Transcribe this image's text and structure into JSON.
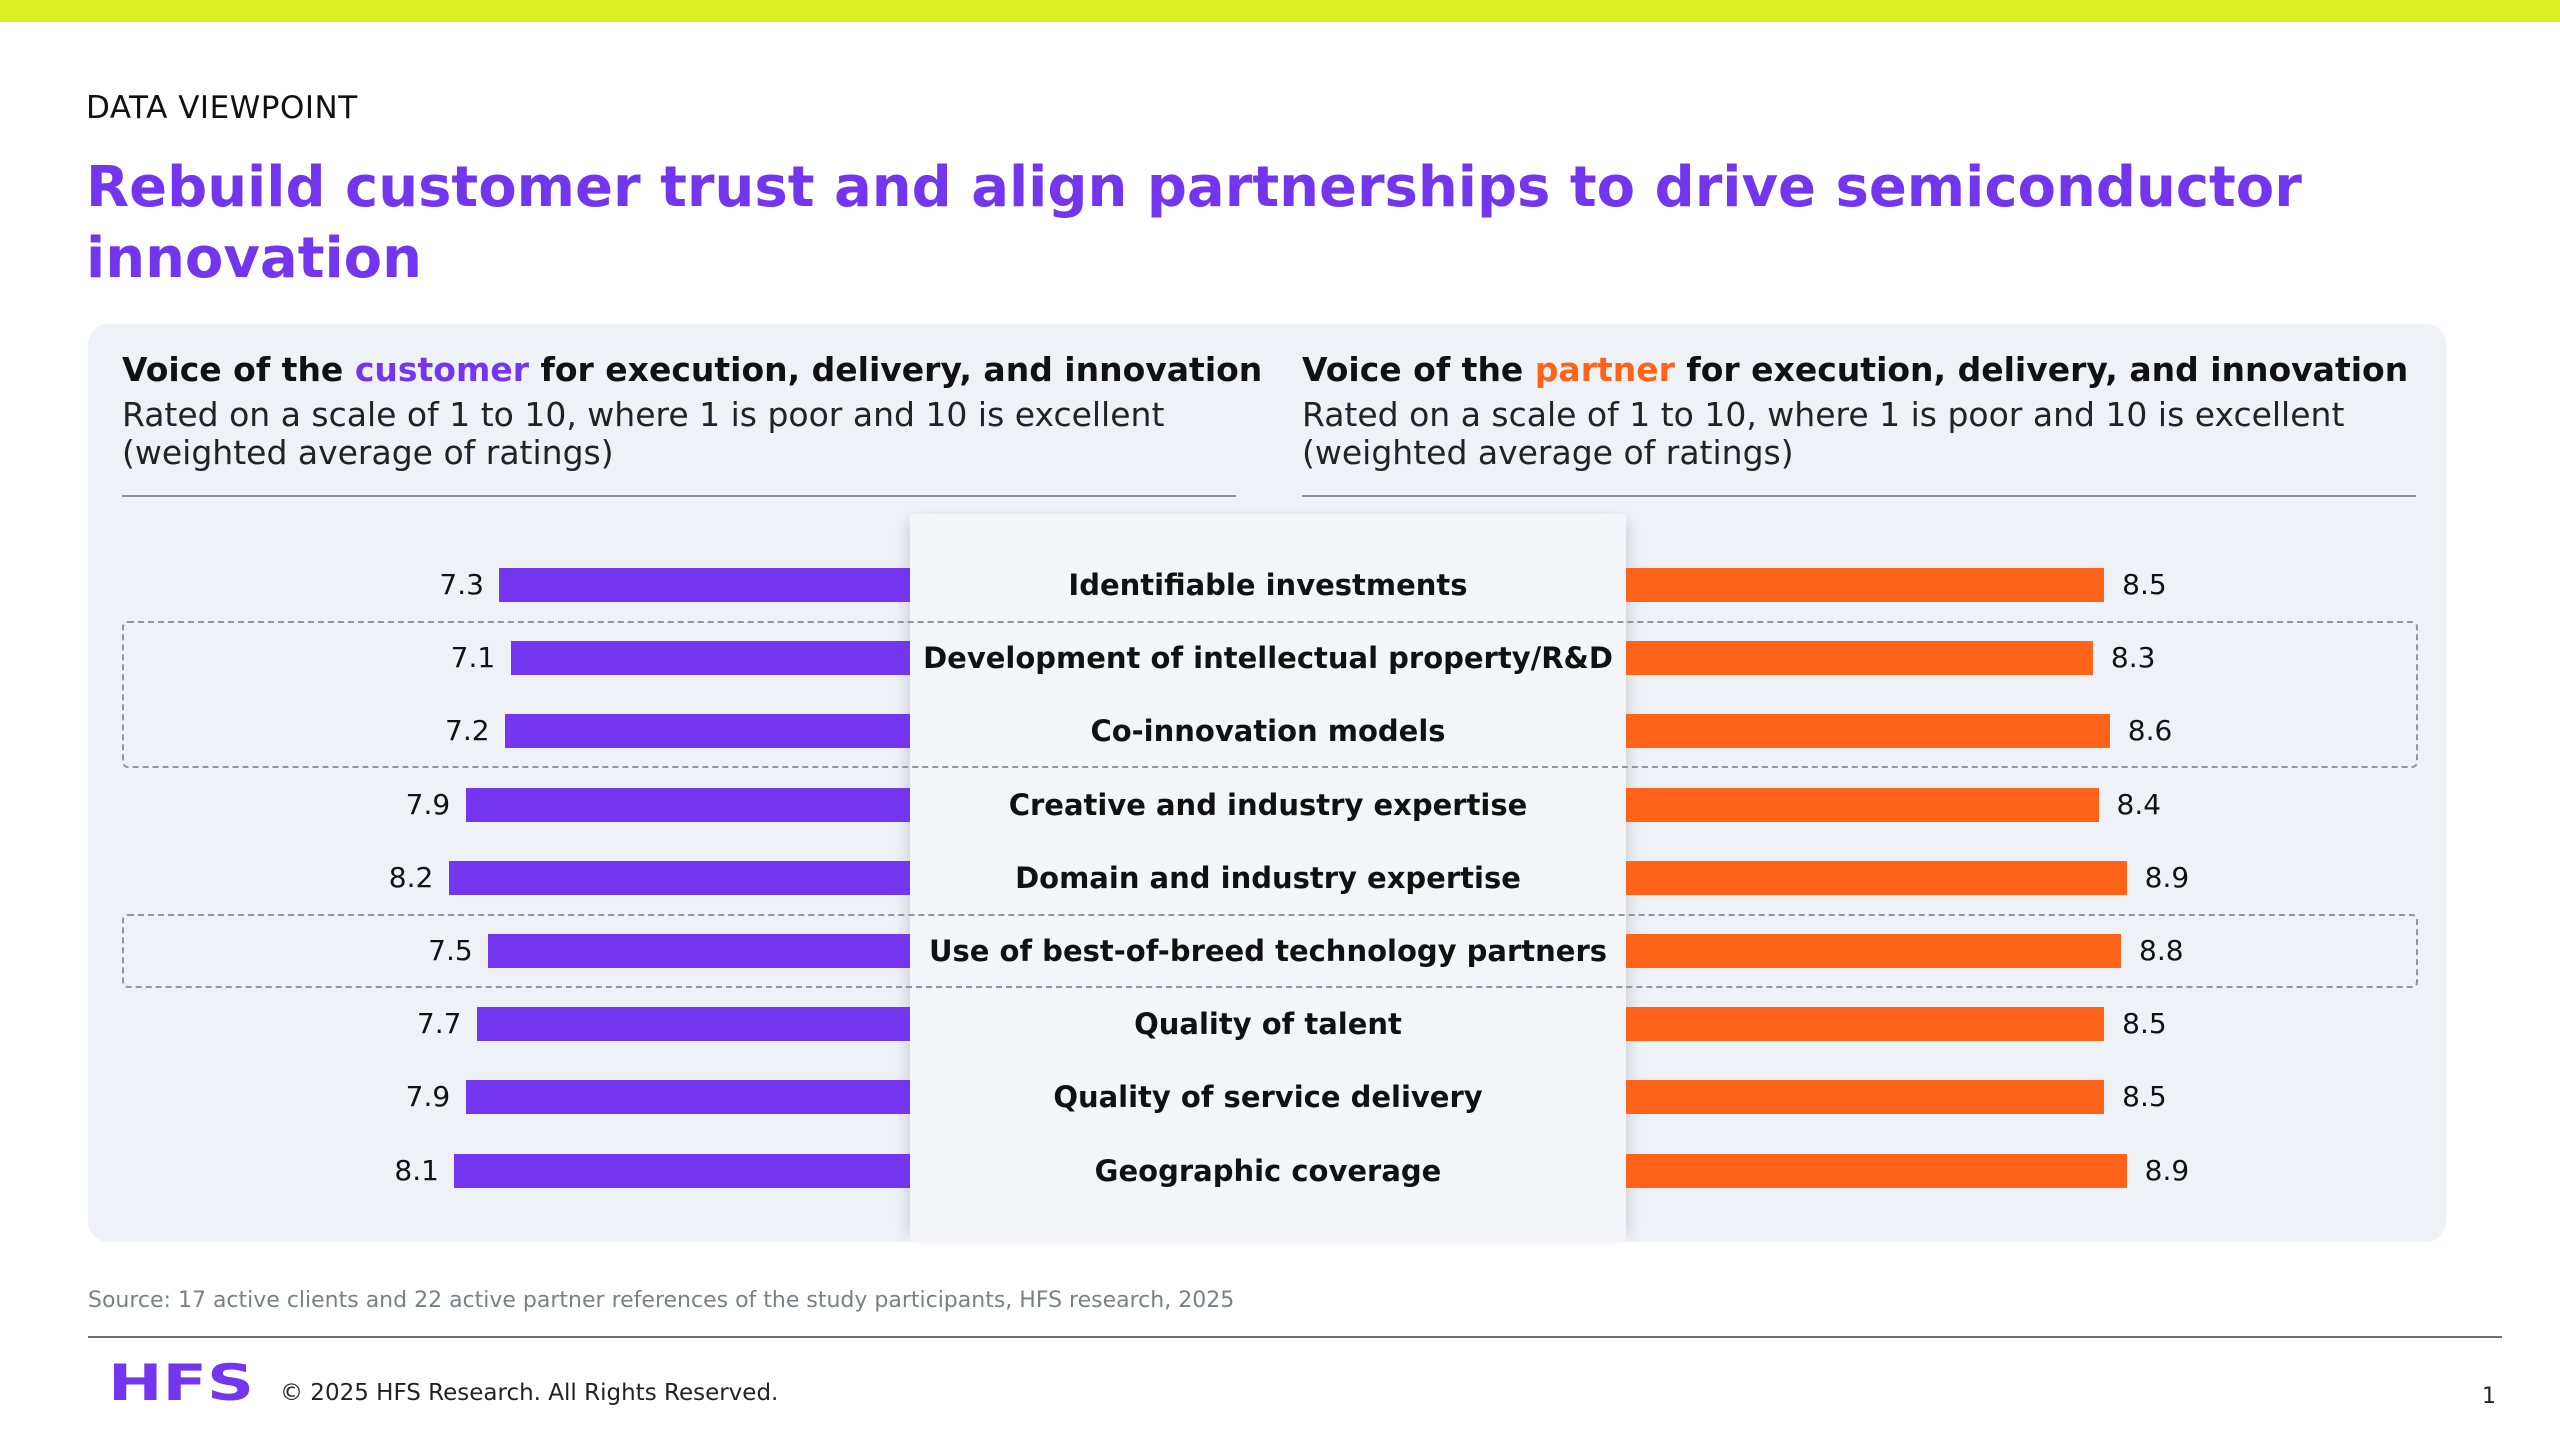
{
  "kicker": "DATA VIEWPOINT",
  "title": "Rebuild customer trust and align partnerships to drive semiconductor innovation",
  "left_panel": {
    "title_prefix": "Voice of the ",
    "title_highlight": "customer",
    "title_suffix": " for execution, delivery, and innovation",
    "subtitle": "Rated on a scale of 1 to 10, where 1 is poor and 10 is excellent (weighted average of ratings)"
  },
  "right_panel": {
    "title_prefix": "Voice of the ",
    "title_highlight": "partner",
    "title_suffix": " for execution, delivery, and innovation",
    "subtitle": "Rated on a scale of 1 to 10, where 1 is poor and 10 is excellent (weighted average of ratings)"
  },
  "chart_data": {
    "type": "bar",
    "orientation": "horizontal-diverging",
    "categories": [
      "Identifiable investments",
      "Development of intellectual property/R&D",
      "Co-innovation models",
      "Creative and industry expertise",
      "Domain and industry expertise",
      "Use of best-of-breed technology partners",
      "Quality of talent",
      "Quality of service delivery",
      "Geographic coverage"
    ],
    "series": [
      {
        "values": [
          7.3,
          7.1,
          7.2,
          7.9,
          8.2,
          7.5,
          7.7,
          7.9,
          8.1
        ],
        "color": "#7336ee",
        "side": "left"
      },
      {
        "values": [
          8.5,
          8.3,
          8.6,
          8.4,
          8.9,
          8.8,
          8.5,
          8.5,
          8.9
        ],
        "color": "#ff6319",
        "side": "right"
      }
    ],
    "highlighted_groups": [
      [
        1,
        2
      ],
      [
        5
      ]
    ]
  },
  "source": "Source: 17 active clients and 22 active partner references of the study participants, HFS research, 2025",
  "footer": {
    "logo_text": "HFS",
    "copyright": "© 2025 HFS Research. All Rights Reserved.",
    "page_number": "1"
  },
  "colors": {
    "accent_purple": "#7336ee",
    "accent_orange": "#ff6319",
    "top_bar": "#d9f021",
    "panel_bg": "#eef2f6"
  }
}
